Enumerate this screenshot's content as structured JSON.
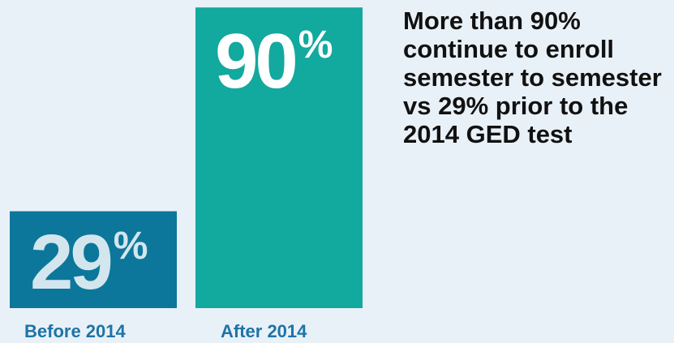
{
  "chart_data": {
    "type": "bar",
    "categories": [
      "Before 2014",
      "After 2014"
    ],
    "values": [
      29,
      90
    ],
    "value_labels": [
      {
        "number": "29",
        "suffix": "%"
      },
      {
        "number": "90",
        "suffix": "%"
      }
    ],
    "colors": [
      "#0c779b",
      "#12a99e"
    ],
    "ylim": [
      0,
      100
    ],
    "title": "",
    "xlabel": "",
    "ylabel": "",
    "grid": false,
    "annotation": "More than 90% continue to enroll semester to semester vs 29% prior to the 2014 GED test"
  }
}
